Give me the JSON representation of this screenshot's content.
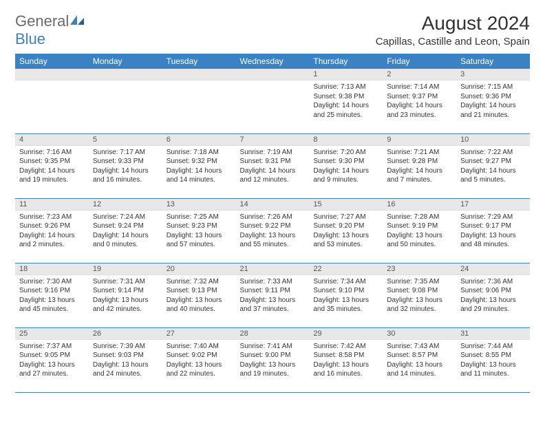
{
  "logo": {
    "general": "General",
    "blue": "Blue"
  },
  "title": "August 2024",
  "location": "Capillas, Castille and Leon, Spain",
  "colors": {
    "header_bg": "#3b82c4",
    "header_text": "#ffffff",
    "daynum_bg": "#e8e8e8",
    "text": "#333333",
    "logo_gray": "#6a6a6a",
    "logo_blue": "#3b82c4",
    "row_border": "#3b82c4"
  },
  "fonts": {
    "title_size": 28,
    "location_size": 15,
    "dayheader_size": 12,
    "cell_size": 10
  },
  "day_headers": [
    "Sunday",
    "Monday",
    "Tuesday",
    "Wednesday",
    "Thursday",
    "Friday",
    "Saturday"
  ],
  "weeks": [
    [
      null,
      null,
      null,
      null,
      {
        "n": "1",
        "sr": "Sunrise: 7:13 AM",
        "ss": "Sunset: 9:38 PM",
        "dl": "Daylight: 14 hours and 25 minutes."
      },
      {
        "n": "2",
        "sr": "Sunrise: 7:14 AM",
        "ss": "Sunset: 9:37 PM",
        "dl": "Daylight: 14 hours and 23 minutes."
      },
      {
        "n": "3",
        "sr": "Sunrise: 7:15 AM",
        "ss": "Sunset: 9:36 PM",
        "dl": "Daylight: 14 hours and 21 minutes."
      }
    ],
    [
      {
        "n": "4",
        "sr": "Sunrise: 7:16 AM",
        "ss": "Sunset: 9:35 PM",
        "dl": "Daylight: 14 hours and 19 minutes."
      },
      {
        "n": "5",
        "sr": "Sunrise: 7:17 AM",
        "ss": "Sunset: 9:33 PM",
        "dl": "Daylight: 14 hours and 16 minutes."
      },
      {
        "n": "6",
        "sr": "Sunrise: 7:18 AM",
        "ss": "Sunset: 9:32 PM",
        "dl": "Daylight: 14 hours and 14 minutes."
      },
      {
        "n": "7",
        "sr": "Sunrise: 7:19 AM",
        "ss": "Sunset: 9:31 PM",
        "dl": "Daylight: 14 hours and 12 minutes."
      },
      {
        "n": "8",
        "sr": "Sunrise: 7:20 AM",
        "ss": "Sunset: 9:30 PM",
        "dl": "Daylight: 14 hours and 9 minutes."
      },
      {
        "n": "9",
        "sr": "Sunrise: 7:21 AM",
        "ss": "Sunset: 9:28 PM",
        "dl": "Daylight: 14 hours and 7 minutes."
      },
      {
        "n": "10",
        "sr": "Sunrise: 7:22 AM",
        "ss": "Sunset: 9:27 PM",
        "dl": "Daylight: 14 hours and 5 minutes."
      }
    ],
    [
      {
        "n": "11",
        "sr": "Sunrise: 7:23 AM",
        "ss": "Sunset: 9:26 PM",
        "dl": "Daylight: 14 hours and 2 minutes."
      },
      {
        "n": "12",
        "sr": "Sunrise: 7:24 AM",
        "ss": "Sunset: 9:24 PM",
        "dl": "Daylight: 14 hours and 0 minutes."
      },
      {
        "n": "13",
        "sr": "Sunrise: 7:25 AM",
        "ss": "Sunset: 9:23 PM",
        "dl": "Daylight: 13 hours and 57 minutes."
      },
      {
        "n": "14",
        "sr": "Sunrise: 7:26 AM",
        "ss": "Sunset: 9:22 PM",
        "dl": "Daylight: 13 hours and 55 minutes."
      },
      {
        "n": "15",
        "sr": "Sunrise: 7:27 AM",
        "ss": "Sunset: 9:20 PM",
        "dl": "Daylight: 13 hours and 53 minutes."
      },
      {
        "n": "16",
        "sr": "Sunrise: 7:28 AM",
        "ss": "Sunset: 9:19 PM",
        "dl": "Daylight: 13 hours and 50 minutes."
      },
      {
        "n": "17",
        "sr": "Sunrise: 7:29 AM",
        "ss": "Sunset: 9:17 PM",
        "dl": "Daylight: 13 hours and 48 minutes."
      }
    ],
    [
      {
        "n": "18",
        "sr": "Sunrise: 7:30 AM",
        "ss": "Sunset: 9:16 PM",
        "dl": "Daylight: 13 hours and 45 minutes."
      },
      {
        "n": "19",
        "sr": "Sunrise: 7:31 AM",
        "ss": "Sunset: 9:14 PM",
        "dl": "Daylight: 13 hours and 42 minutes."
      },
      {
        "n": "20",
        "sr": "Sunrise: 7:32 AM",
        "ss": "Sunset: 9:13 PM",
        "dl": "Daylight: 13 hours and 40 minutes."
      },
      {
        "n": "21",
        "sr": "Sunrise: 7:33 AM",
        "ss": "Sunset: 9:11 PM",
        "dl": "Daylight: 13 hours and 37 minutes."
      },
      {
        "n": "22",
        "sr": "Sunrise: 7:34 AM",
        "ss": "Sunset: 9:10 PM",
        "dl": "Daylight: 13 hours and 35 minutes."
      },
      {
        "n": "23",
        "sr": "Sunrise: 7:35 AM",
        "ss": "Sunset: 9:08 PM",
        "dl": "Daylight: 13 hours and 32 minutes."
      },
      {
        "n": "24",
        "sr": "Sunrise: 7:36 AM",
        "ss": "Sunset: 9:06 PM",
        "dl": "Daylight: 13 hours and 29 minutes."
      }
    ],
    [
      {
        "n": "25",
        "sr": "Sunrise: 7:37 AM",
        "ss": "Sunset: 9:05 PM",
        "dl": "Daylight: 13 hours and 27 minutes."
      },
      {
        "n": "26",
        "sr": "Sunrise: 7:39 AM",
        "ss": "Sunset: 9:03 PM",
        "dl": "Daylight: 13 hours and 24 minutes."
      },
      {
        "n": "27",
        "sr": "Sunrise: 7:40 AM",
        "ss": "Sunset: 9:02 PM",
        "dl": "Daylight: 13 hours and 22 minutes."
      },
      {
        "n": "28",
        "sr": "Sunrise: 7:41 AM",
        "ss": "Sunset: 9:00 PM",
        "dl": "Daylight: 13 hours and 19 minutes."
      },
      {
        "n": "29",
        "sr": "Sunrise: 7:42 AM",
        "ss": "Sunset: 8:58 PM",
        "dl": "Daylight: 13 hours and 16 minutes."
      },
      {
        "n": "30",
        "sr": "Sunrise: 7:43 AM",
        "ss": "Sunset: 8:57 PM",
        "dl": "Daylight: 13 hours and 14 minutes."
      },
      {
        "n": "31",
        "sr": "Sunrise: 7:44 AM",
        "ss": "Sunset: 8:55 PM",
        "dl": "Daylight: 13 hours and 11 minutes."
      }
    ]
  ]
}
